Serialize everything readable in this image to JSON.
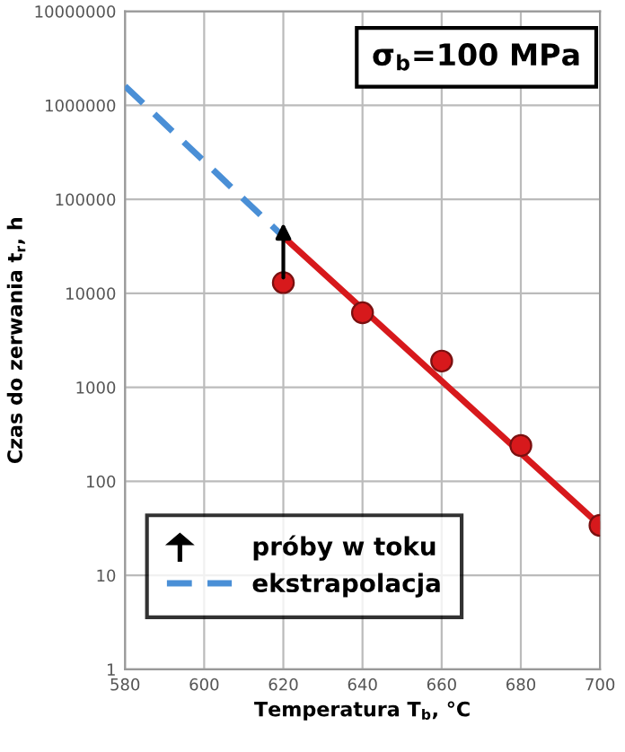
{
  "chart_data": {
    "type": "line",
    "xlabel": "Temperatura T$_{b}$, °C",
    "ylabel": "Czas do zerwania t$_{r}$, h",
    "annotations": [
      "σ$_{b}$=100 MPa",
      "próby w toku"
    ],
    "series": [
      {
        "type": "scatter",
        "color": "#d7191c",
        "marker": "circle",
        "x": [
          620,
          640,
          660,
          680,
          700
        ],
        "values": [
          13000,
          6200,
          1900,
          240,
          34
        ]
      },
      {
        "color": "#d7191c",
        "line_style": "solid",
        "x": [
          620,
          700
        ],
        "values": [
          40000,
          34
        ]
      },
      {
        "name": "ekstrapolacja",
        "color": "#4a8fd6",
        "line_style": "dashed",
        "x": [
          580,
          620
        ],
        "values": [
          1600000,
          40000
        ]
      }
    ],
    "log": "y",
    "xlim": [
      580,
      700
    ],
    "xticks": [
      580,
      600,
      620,
      640,
      660,
      680,
      700
    ],
    "ylim": [
      1,
      10000000
    ],
    "yticks": [
      1,
      10,
      100,
      1000,
      10000,
      100000,
      1000000,
      10000000
    ],
    "grid": true,
    "legend": "bottom left"
  }
}
